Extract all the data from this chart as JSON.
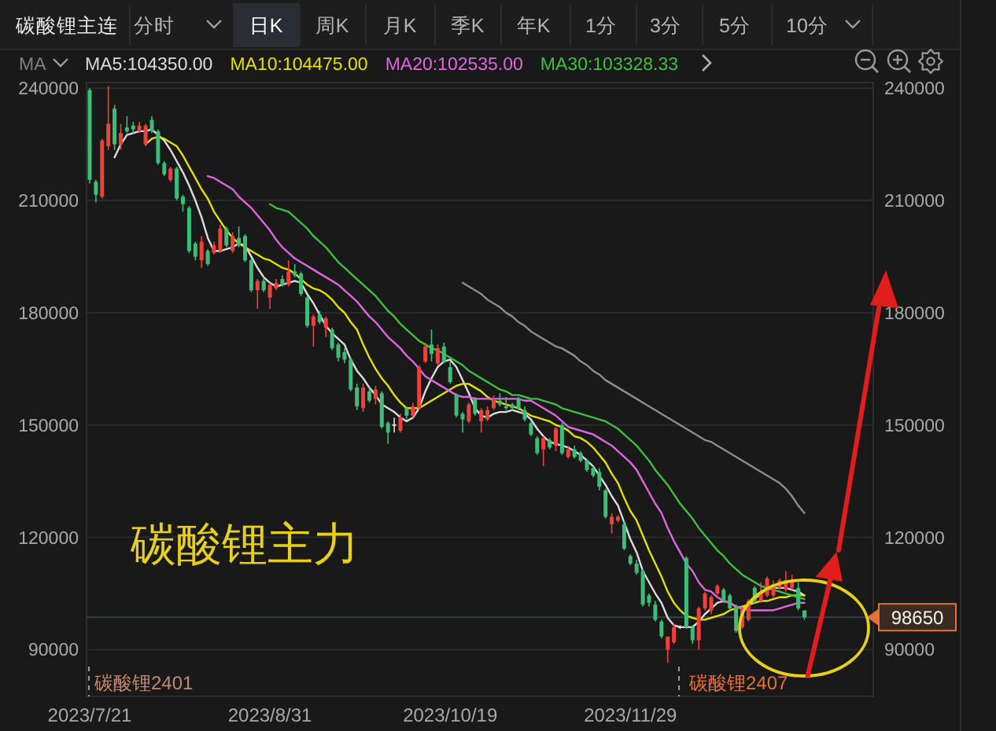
{
  "chart_data": {
    "type": "candlestick",
    "title": "碳酸锂主连",
    "categories": [
      "2023/7/21",
      null,
      null,
      null,
      null,
      null,
      null,
      null,
      null,
      null,
      null,
      null,
      null,
      null,
      null,
      null,
      null,
      null,
      null,
      null,
      null,
      null,
      null,
      null,
      null,
      null,
      null,
      null,
      null,
      "2023/8/31",
      null,
      null,
      null,
      null,
      null,
      null,
      null,
      null,
      null,
      null,
      null,
      null,
      null,
      null,
      null,
      null,
      null,
      null,
      null,
      null,
      null,
      null,
      null,
      null,
      null,
      null,
      null,
      null,
      "2023/10/19",
      null,
      null,
      null,
      null,
      null,
      null,
      null,
      null,
      null,
      null,
      null,
      null,
      null,
      null,
      null,
      null,
      null,
      null,
      null,
      null,
      null,
      null,
      null,
      null,
      null,
      null,
      null,
      null,
      "2023/11/29",
      null,
      null,
      null,
      null,
      null,
      null,
      null,
      null,
      null,
      null,
      null,
      null,
      null,
      null,
      null,
      null,
      null,
      null,
      null,
      null,
      null,
      null,
      null,
      null,
      null,
      null,
      null,
      null
    ],
    "ohlc": [
      [
        239500,
        240000,
        214500,
        215500
      ],
      [
        215000,
        215500,
        209500,
        211500
      ],
      [
        211000,
        226500,
        210500,
        226000
      ],
      [
        224500,
        240500,
        223500,
        230500
      ],
      [
        234500,
        235500,
        223500,
        225000
      ],
      [
        225000,
        230500,
        223500,
        228000
      ],
      [
        229500,
        232500,
        228000,
        228500
      ],
      [
        230000,
        231000,
        228000,
        229000
      ],
      [
        228500,
        231000,
        228000,
        230000
      ],
      [
        225000,
        230500,
        224500,
        230000
      ],
      [
        231500,
        232500,
        228000,
        228500
      ],
      [
        228500,
        229000,
        219500,
        220000
      ],
      [
        220000,
        220500,
        216500,
        217000
      ],
      [
        215500,
        219000,
        215000,
        218500
      ],
      [
        218500,
        219000,
        210000,
        210500
      ],
      [
        211000,
        211500,
        207000,
        209000
      ],
      [
        208000,
        208500,
        196000,
        196500
      ],
      [
        198500,
        199000,
        194000,
        195000
      ],
      [
        194000,
        200500,
        192000,
        199000
      ],
      [
        196500,
        197000,
        192500,
        193000
      ],
      [
        196000,
        199000,
        195500,
        198000
      ],
      [
        196500,
        203500,
        196000,
        202500
      ],
      [
        202500,
        203000,
        197500,
        198000
      ],
      [
        196500,
        201500,
        196000,
        200500
      ],
      [
        200000,
        203000,
        197500,
        198000
      ],
      [
        200500,
        201000,
        193500,
        194000
      ],
      [
        194000,
        194500,
        185500,
        186000
      ],
      [
        186000,
        189000,
        181000,
        188500
      ],
      [
        188500,
        189500,
        185500,
        186000
      ],
      [
        184000,
        188000,
        181000,
        187500
      ],
      [
        186500,
        189000,
        186000,
        188000
      ],
      [
        189000,
        190000,
        187000,
        187500
      ],
      [
        187500,
        194000,
        187000,
        191000
      ],
      [
        191000,
        193000,
        189500,
        190000
      ],
      [
        190500,
        191000,
        184500,
        185000
      ],
      [
        184000,
        184500,
        176000,
        176500
      ],
      [
        176500,
        179500,
        171000,
        179000
      ],
      [
        179500,
        180500,
        177000,
        177500
      ],
      [
        176000,
        179000,
        173500,
        178500
      ],
      [
        175500,
        176000,
        170000,
        170500
      ],
      [
        171500,
        172000,
        167000,
        168000
      ],
      [
        169500,
        170500,
        166500,
        167500
      ],
      [
        167500,
        168000,
        159000,
        159500
      ],
      [
        160000,
        161000,
        154000,
        155000
      ],
      [
        154500,
        161000,
        153500,
        160000
      ],
      [
        159000,
        160000,
        156000,
        156500
      ],
      [
        157000,
        160500,
        155500,
        159500
      ],
      [
        158500,
        159000,
        149000,
        149500
      ],
      [
        150500,
        151000,
        145000,
        148000
      ],
      [
        150000,
        152000,
        148000,
        150000
      ],
      [
        148500,
        153000,
        148000,
        152000
      ],
      [
        154500,
        155000,
        151500,
        152500
      ],
      [
        152500,
        156000,
        152000,
        155000
      ],
      [
        154500,
        166000,
        154000,
        165500
      ],
      [
        167000,
        172000,
        166500,
        171000
      ],
      [
        171500,
        175500,
        167000,
        169000
      ],
      [
        166500,
        171500,
        166000,
        170500
      ],
      [
        171000,
        172000,
        166500,
        167000
      ],
      [
        165500,
        167000,
        161000,
        161500
      ],
      [
        158000,
        158500,
        152000,
        152500
      ],
      [
        153000,
        153500,
        148000,
        151500
      ],
      [
        151000,
        156000,
        150500,
        155500
      ],
      [
        157000,
        157500,
        152500,
        153000
      ],
      [
        151000,
        154500,
        148000,
        154000
      ],
      [
        151500,
        155000,
        151000,
        154000
      ],
      [
        154500,
        158000,
        154000,
        157000
      ],
      [
        156500,
        158500,
        155000,
        155500
      ],
      [
        155000,
        157500,
        154000,
        154500
      ],
      [
        155500,
        156000,
        154000,
        154500
      ],
      [
        157000,
        157500,
        154000,
        154500
      ],
      [
        154000,
        155000,
        151000,
        151500
      ],
      [
        150500,
        151000,
        147000,
        147500
      ],
      [
        146500,
        147000,
        142000,
        142500
      ],
      [
        143500,
        147000,
        139000,
        146500
      ],
      [
        146000,
        146500,
        143500,
        144000
      ],
      [
        144500,
        149500,
        143000,
        149000
      ],
      [
        150000,
        150500,
        142000,
        142500
      ],
      [
        141500,
        144500,
        141000,
        143500
      ],
      [
        143500,
        144500,
        141000,
        141500
      ],
      [
        142500,
        143000,
        140000,
        140500
      ],
      [
        140500,
        141000,
        137500,
        138000
      ],
      [
        138500,
        139000,
        136000,
        136500
      ],
      [
        137500,
        138500,
        132500,
        133500
      ],
      [
        132500,
        133000,
        125000,
        125500
      ],
      [
        123500,
        126500,
        121000,
        125500
      ],
      [
        124500,
        126000,
        124000,
        125500
      ],
      [
        123500,
        124500,
        116500,
        117000
      ],
      [
        115000,
        115500,
        112500,
        113000
      ],
      [
        113000,
        114000,
        110000,
        110500
      ],
      [
        111000,
        111500,
        101500,
        102000
      ],
      [
        104500,
        105000,
        101500,
        102500
      ],
      [
        102000,
        103000,
        97500,
        98000
      ],
      [
        97500,
        98000,
        93000,
        93500
      ],
      [
        90000,
        93500,
        86500,
        93500
      ],
      [
        92000,
        97000,
        91500,
        96000
      ],
      [
        96000,
        96500,
        95500,
        96000
      ],
      [
        114500,
        115000,
        95500,
        96000
      ],
      [
        96000,
        96500,
        91500,
        92500
      ],
      [
        92500,
        101500,
        90000,
        101000
      ],
      [
        101000,
        105500,
        100500,
        105000
      ],
      [
        100500,
        104500,
        99500,
        104000
      ],
      [
        105000,
        107500,
        104500,
        107000
      ],
      [
        106000,
        106500,
        102500,
        103000
      ],
      [
        104500,
        105000,
        100500,
        101000
      ],
      [
        101500,
        102000,
        94500,
        95000
      ],
      [
        96000,
        101500,
        95500,
        101000
      ],
      [
        98000,
        103500,
        97500,
        103000
      ],
      [
        106500,
        107000,
        102500,
        103000
      ],
      [
        103000,
        108000,
        102500,
        105000
      ],
      [
        104500,
        109500,
        104000,
        109000
      ],
      [
        104500,
        108500,
        104000,
        107500
      ],
      [
        106500,
        109000,
        106000,
        108500
      ],
      [
        106000,
        111000,
        105500,
        108500
      ],
      [
        106500,
        110000,
        106000,
        108500
      ],
      [
        106500,
        108000,
        100500,
        101000
      ],
      [
        100500,
        100500,
        98000,
        98650
      ]
    ],
    "colors": [
      "#3cbd78",
      "#3cbd78",
      "#f0403c",
      "#f0403c",
      "#3cbd78",
      "#f0403c",
      "#3cbd78",
      "#3cbd78",
      "#f0403c",
      "#f0403c",
      "#3cbd78",
      "#3cbd78",
      "#3cbd78",
      "#f0403c",
      "#3cbd78",
      "#3cbd78",
      "#3cbd78",
      "#3cbd78",
      "#f0403c",
      "#3cbd78",
      "#f0403c",
      "#f0403c",
      "#3cbd78",
      "#f0403c",
      "#3cbd78",
      "#3cbd78",
      "#3cbd78",
      "#f0403c",
      "#3cbd78",
      "#f0403c",
      "#f0403c",
      "#3cbd78",
      "#f0403c",
      "#3cbd78",
      "#3cbd78",
      "#3cbd78",
      "#f0403c",
      "#3cbd78",
      "#f0403c",
      "#3cbd78",
      "#3cbd78",
      "#3cbd78",
      "#3cbd78",
      "#3cbd78",
      "#f0403c",
      "#3cbd78",
      "#f0403c",
      "#3cbd78",
      "#3cbd78",
      "#dedede",
      "#f0403c",
      "#3cbd78",
      "#f0403c",
      "#f0403c",
      "#f0403c",
      "#3cbd78",
      "#f0403c",
      "#3cbd78",
      "#3cbd78",
      "#3cbd78",
      "#3cbd78",
      "#f0403c",
      "#3cbd78",
      "#f0403c",
      "#f0403c",
      "#f0403c",
      "#3cbd78",
      "#3cbd78",
      "#3cbd78",
      "#3cbd78",
      "#3cbd78",
      "#3cbd78",
      "#3cbd78",
      "#f0403c",
      "#3cbd78",
      "#f0403c",
      "#3cbd78",
      "#f0403c",
      "#3cbd78",
      "#3cbd78",
      "#3cbd78",
      "#3cbd78",
      "#3cbd78",
      "#3cbd78",
      "#f0403c",
      "#f0403c",
      "#3cbd78",
      "#3cbd78",
      "#3cbd78",
      "#3cbd78",
      "#3cbd78",
      "#3cbd78",
      "#3cbd78",
      "#f0403c",
      "#f0403c",
      "#dedede",
      "#3cbd78",
      "#3cbd78",
      "#f0403c",
      "#f0403c",
      "#f0403c",
      "#f0403c",
      "#3cbd78",
      "#3cbd78",
      "#3cbd78",
      "#f0403c",
      "#f0403c",
      "#3cbd78",
      "#f0403c",
      "#f0403c",
      "#f0403c",
      "#f0403c",
      "#f0403c",
      "#f0403c",
      "#3cbd78",
      "#3cbd78"
    ],
    "series": [
      {
        "name": "MA5:104350.00",
        "type": "line",
        "color": "#dcdcdc",
        "values": [
          null,
          null,
          null,
          null,
          221500,
          225000,
          227500,
          228000,
          228500,
          228500,
          229000,
          227500,
          226000,
          223500,
          220500,
          217500,
          214000,
          210000,
          205500,
          200000,
          196500,
          196500,
          197000,
          197500,
          198500,
          198000,
          195000,
          192000,
          189500,
          188000,
          187000,
          187500,
          188000,
          188500,
          188000,
          185000,
          182500,
          179500,
          176500,
          174500,
          173000,
          171500,
          167500,
          164500,
          162500,
          160000,
          158000,
          155500,
          154500,
          153500,
          152000,
          151000,
          152000,
          154500,
          159000,
          162500,
          165500,
          167000,
          167500,
          165500,
          162000,
          158500,
          154500,
          152500,
          152000,
          153000,
          153500,
          153500,
          154000,
          153500,
          153000,
          151500,
          149000,
          147000,
          145500,
          145000,
          144500,
          144000,
          143000,
          142000,
          140500,
          139000,
          136500,
          134000,
          131000,
          128500,
          124000,
          119500,
          116000,
          111000,
          108000,
          105000,
          102500,
          98500,
          96500,
          96000,
          96000,
          96000,
          97500,
          99500,
          101000,
          102500,
          103000,
          102500,
          101500,
          101000,
          102000,
          103500,
          105000,
          106000,
          106500,
          106500,
          106500,
          106000,
          105500,
          104500
        ]
      },
      {
        "name": "MA10:104475.00",
        "type": "line",
        "color": "#e3e000",
        "values": [
          null,
          null,
          null,
          null,
          null,
          null,
          null,
          null,
          null,
          225000,
          226500,
          227000,
          226500,
          225500,
          224500,
          222000,
          219000,
          216000,
          213000,
          210500,
          207000,
          204500,
          202000,
          200000,
          198500,
          197500,
          196500,
          195500,
          194500,
          194000,
          193000,
          192000,
          191500,
          190500,
          189000,
          187500,
          186500,
          186000,
          185000,
          183500,
          181500,
          180000,
          177500,
          175500,
          171500,
          168000,
          165000,
          162500,
          160500,
          158000,
          156000,
          154500,
          154500,
          154500,
          155500,
          156500,
          157500,
          158500,
          159500,
          160500,
          161000,
          161000,
          160000,
          159000,
          157500,
          156500,
          156000,
          155500,
          155000,
          154500,
          153500,
          152500,
          152000,
          151500,
          151000,
          150000,
          149500,
          148500,
          147000,
          146500,
          145500,
          144000,
          142000,
          140000,
          137000,
          134500,
          130500,
          127000,
          124500,
          120500,
          116500,
          113000,
          109500,
          105500,
          102500,
          100500,
          99000,
          98500,
          98000,
          98000,
          98500,
          99000,
          99500,
          100500,
          101000,
          101500,
          102000,
          102500,
          103000,
          103000,
          103500,
          104000,
          104000,
          104500,
          104500,
          104500
        ]
      },
      {
        "name": "MA20:102535.00",
        "type": "line",
        "color": "#e066e0",
        "values": [
          null,
          null,
          null,
          null,
          null,
          null,
          null,
          null,
          null,
          null,
          null,
          null,
          null,
          null,
          null,
          null,
          null,
          null,
          null,
          216500,
          216000,
          215000,
          214000,
          213000,
          211000,
          209500,
          208000,
          206000,
          204000,
          202000,
          199500,
          197500,
          196000,
          194500,
          193500,
          192500,
          191500,
          190500,
          189500,
          188500,
          187500,
          186000,
          184500,
          183000,
          181000,
          179000,
          177500,
          175500,
          173500,
          172000,
          170500,
          168500,
          167000,
          165000,
          163000,
          162000,
          161000,
          160000,
          159000,
          158000,
          157500,
          157500,
          157000,
          157000,
          157000,
          157000,
          157000,
          157000,
          157000,
          157000,
          156500,
          156500,
          155500,
          154500,
          153500,
          152500,
          151000,
          149500,
          149000,
          148500,
          148000,
          147500,
          146500,
          145500,
          144500,
          143000,
          141500,
          140000,
          138000,
          135000,
          132000,
          129000,
          126500,
          122500,
          119000,
          116000,
          113000,
          111000,
          108000,
          106000,
          105500,
          104000,
          103000,
          102500,
          101500,
          101000,
          100500,
          100500,
          100500,
          100500,
          100500,
          101000,
          101500,
          102000,
          102500,
          102500
        ]
      },
      {
        "name": "MA30:103328.33",
        "type": "line",
        "color": "#3fbf3f",
        "values": [
          null,
          null,
          null,
          null,
          null,
          null,
          null,
          null,
          null,
          null,
          null,
          null,
          null,
          null,
          null,
          null,
          null,
          null,
          null,
          null,
          null,
          null,
          null,
          null,
          null,
          null,
          null,
          null,
          null,
          209000,
          208000,
          207500,
          207000,
          205500,
          204000,
          202500,
          200500,
          199000,
          197500,
          195500,
          193500,
          192000,
          190500,
          189000,
          187500,
          186000,
          184500,
          182500,
          180500,
          179000,
          177000,
          175500,
          174000,
          172500,
          171500,
          170500,
          170000,
          169000,
          168000,
          167000,
          166000,
          164500,
          163500,
          162500,
          161500,
          160500,
          159500,
          159000,
          158000,
          158000,
          157500,
          157000,
          157000,
          156500,
          156000,
          155500,
          154500,
          154000,
          153500,
          153000,
          152500,
          152000,
          151500,
          151000,
          150000,
          149000,
          147500,
          146000,
          144500,
          142500,
          140500,
          138000,
          136000,
          134000,
          131500,
          129000,
          127000,
          125000,
          122500,
          120500,
          118500,
          116500,
          115000,
          113000,
          111500,
          110000,
          109000,
          108000,
          107000,
          106500,
          106000,
          105500,
          105000,
          104500,
          104000,
          103500
        ]
      },
      {
        "type": "line",
        "color": "#8c8c8c",
        "values": [
          null,
          null,
          null,
          null,
          null,
          null,
          null,
          null,
          null,
          null,
          null,
          null,
          null,
          null,
          null,
          null,
          null,
          null,
          null,
          null,
          null,
          null,
          null,
          null,
          null,
          null,
          null,
          null,
          null,
          null,
          null,
          null,
          null,
          null,
          null,
          null,
          null,
          null,
          null,
          null,
          null,
          null,
          null,
          null,
          null,
          null,
          null,
          null,
          null,
          null,
          null,
          null,
          null,
          null,
          null,
          null,
          null,
          null,
          null,
          null,
          188000,
          187000,
          186000,
          185000,
          183500,
          182500,
          181500,
          180000,
          179000,
          177500,
          176500,
          175000,
          174000,
          173000,
          172000,
          171000,
          170500,
          169500,
          168500,
          167000,
          166000,
          164500,
          163500,
          162000,
          161000,
          160000,
          159000,
          158000,
          157000,
          156000,
          155000,
          154000,
          153000,
          152000,
          151000,
          150000,
          149000,
          148000,
          147000,
          146000,
          145500,
          144500,
          143500,
          142500,
          141500,
          140500,
          139500,
          138500,
          137500,
          136500,
          135500,
          134500,
          133000,
          131000,
          128500,
          126500
        ]
      }
    ],
    "ylim": [
      77500,
      241500
    ],
    "yticks": [
      90000,
      120000,
      150000,
      180000,
      210000,
      240000
    ],
    "y2lim": [
      77500,
      241500
    ],
    "y2ticks": [
      90000,
      120000,
      150000,
      180000,
      210000,
      240000
    ],
    "grid": "y",
    "legend": "top left",
    "ref_lines": [
      {
        "axis": "y",
        "value": 98650,
        "color": "#3b404b"
      }
    ],
    "annotations": [
      "分时",
      "日K",
      "周K",
      "月K",
      "季K",
      "年K",
      "1分",
      "3分",
      "5分",
      "10分",
      "MA",
      "碳酸锂主力",
      "碳酸锂2401",
      "碳酸锂2407",
      "98650"
    ]
  }
}
